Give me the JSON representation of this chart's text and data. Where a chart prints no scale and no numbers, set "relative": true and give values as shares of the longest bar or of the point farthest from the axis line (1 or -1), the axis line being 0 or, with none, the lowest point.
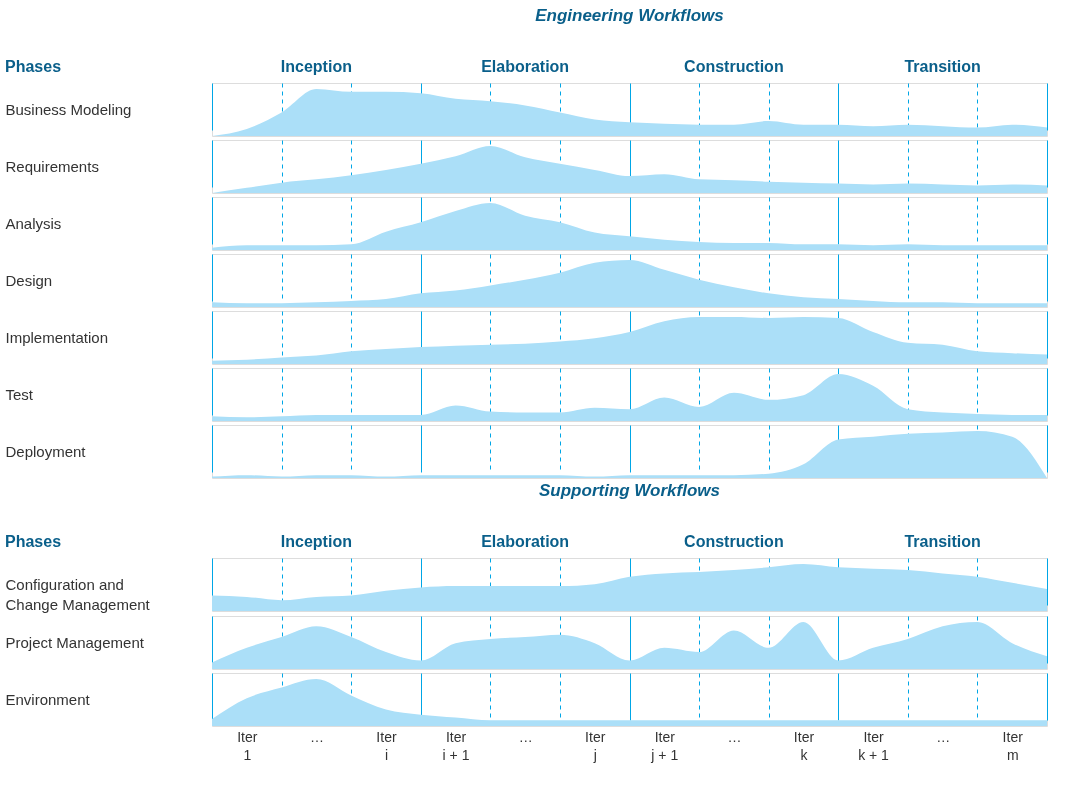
{
  "chart_data": [
    {
      "type": "area",
      "relative": true,
      "title": "Engineering Workflows",
      "annotations": [
        "Phases",
        "Inception",
        "Elaboration",
        "Construction",
        "Transition"
      ],
      "ylabel": "Business Modeling",
      "color": "#abdff8",
      "grid": "x",
      "tick_labels": false,
      "categories": [
        null,
        null,
        null,
        null,
        null,
        null,
        null,
        null,
        null,
        null,
        null,
        null,
        null,
        null,
        null,
        null,
        null,
        null,
        null,
        null,
        null,
        null,
        null,
        null,
        null
      ],
      "values": [
        0,
        0.15,
        0.5,
        1,
        0.94,
        0.94,
        0.91,
        0.79,
        0.74,
        0.65,
        0.5,
        0.35,
        0.29,
        0.26,
        0.24,
        0.24,
        0.32,
        0.24,
        0.24,
        0.21,
        0.24,
        0.21,
        0.18,
        0.24,
        0.18
      ]
    },
    {
      "type": "area",
      "relative": true,
      "ylabel": "Requirements",
      "color": "#abdff8",
      "grid": "x",
      "tick_labels": false,
      "categories": [
        null,
        null,
        null,
        null,
        null,
        null,
        null,
        null,
        null,
        null,
        null,
        null,
        null,
        null,
        null,
        null,
        null,
        null,
        null,
        null,
        null,
        null,
        null,
        null,
        null
      ],
      "values": [
        0,
        0.11,
        0.22,
        0.29,
        0.38,
        0.49,
        0.62,
        0.78,
        1,
        0.76,
        0.62,
        0.49,
        0.36,
        0.4,
        0.29,
        0.27,
        0.24,
        0.22,
        0.2,
        0.18,
        0.2,
        0.18,
        0.16,
        0.18,
        0.16
      ]
    },
    {
      "type": "area",
      "relative": true,
      "ylabel": "Analysis",
      "color": "#abdff8",
      "grid": "x",
      "tick_labels": false,
      "categories": [
        null,
        null,
        null,
        null,
        null,
        null,
        null,
        null,
        null,
        null,
        null,
        null,
        null,
        null,
        null,
        null,
        null,
        null,
        null,
        null,
        null,
        null,
        null,
        null,
        null
      ],
      "values": [
        0.05,
        0.1,
        0.1,
        0.1,
        0.12,
        0.39,
        0.59,
        0.83,
        1,
        0.73,
        0.59,
        0.37,
        0.29,
        0.22,
        0.17,
        0.15,
        0.15,
        0.12,
        0.12,
        0.1,
        0.12,
        0.1,
        0.1,
        0.1,
        0.1
      ]
    },
    {
      "type": "area",
      "relative": true,
      "ylabel": "Design",
      "color": "#abdff8",
      "grid": "x",
      "tick_labels": false,
      "categories": [
        null,
        null,
        null,
        null,
        null,
        null,
        null,
        null,
        null,
        null,
        null,
        null,
        null,
        null,
        null,
        null,
        null,
        null,
        null,
        null,
        null,
        null,
        null,
        null,
        null
      ],
      "values": [
        0.1,
        0.08,
        0.08,
        0.1,
        0.13,
        0.17,
        0.29,
        0.35,
        0.46,
        0.58,
        0.73,
        0.94,
        1,
        0.79,
        0.58,
        0.42,
        0.29,
        0.21,
        0.17,
        0.13,
        0.1,
        0.1,
        0.08,
        0.08,
        0.08
      ]
    },
    {
      "type": "area",
      "relative": true,
      "ylabel": "Implementation",
      "color": "#abdff8",
      "grid": "x",
      "tick_labels": false,
      "categories": [
        null,
        null,
        null,
        null,
        null,
        null,
        null,
        null,
        null,
        null,
        null,
        null,
        null,
        null,
        null,
        null,
        null,
        null,
        null,
        null,
        null,
        null,
        null,
        null,
        null
      ],
      "values": [
        0.07,
        0.09,
        0.14,
        0.18,
        0.27,
        0.32,
        0.36,
        0.39,
        0.41,
        0.43,
        0.48,
        0.55,
        0.68,
        0.91,
        1,
        1,
        0.98,
        1,
        0.98,
        0.68,
        0.45,
        0.41,
        0.27,
        0.23,
        0.2
      ]
    },
    {
      "type": "area",
      "relative": true,
      "ylabel": "Test",
      "color": "#abdff8",
      "grid": "x",
      "tick_labels": false,
      "categories": [
        null,
        null,
        null,
        null,
        null,
        null,
        null,
        null,
        null,
        null,
        null,
        null,
        null,
        null,
        null,
        null,
        null,
        null,
        null,
        null,
        null,
        null,
        null,
        null,
        null
      ],
      "values": [
        0.1,
        0.08,
        0.1,
        0.13,
        0.13,
        0.13,
        0.13,
        0.33,
        0.2,
        0.18,
        0.18,
        0.28,
        0.25,
        0.5,
        0.3,
        0.6,
        0.45,
        0.55,
        1,
        0.75,
        0.25,
        0.18,
        0.15,
        0.13,
        0.13
      ]
    },
    {
      "type": "area",
      "relative": true,
      "ylabel": "Deployment",
      "color": "#abdff8",
      "grid": "x",
      "tick_labels": false,
      "categories": [
        null,
        null,
        null,
        null,
        null,
        null,
        null,
        null,
        null,
        null,
        null,
        null,
        null,
        null,
        null,
        null,
        null,
        null,
        null,
        null,
        null,
        null,
        null,
        null,
        null
      ],
      "values": [
        0.03,
        0.06,
        0.03,
        0.06,
        0.06,
        0.03,
        0.06,
        0.06,
        0.06,
        0.06,
        0.06,
        0.03,
        0.06,
        0.06,
        0.06,
        0.06,
        0.09,
        0.29,
        0.82,
        0.88,
        0.94,
        0.97,
        1,
        0.88,
        0
      ]
    },
    {
      "type": "area",
      "relative": true,
      "title": "Supporting Workflows",
      "annotations": [
        "Phases",
        "Inception",
        "Elaboration",
        "Construction",
        "Transition"
      ],
      "ylabel": "Configuration and Change Management",
      "color": "#abdff8",
      "grid": "x",
      "tick_labels": false,
      "categories": [
        null,
        null,
        null,
        null,
        null,
        null,
        null,
        null,
        null,
        null,
        null,
        null,
        null,
        null,
        null,
        null,
        null,
        null,
        null,
        null,
        null,
        null,
        null,
        null,
        null
      ],
      "values": [
        0.33,
        0.3,
        0.23,
        0.3,
        0.33,
        0.43,
        0.5,
        0.53,
        0.53,
        0.53,
        0.53,
        0.57,
        0.73,
        0.8,
        0.83,
        0.87,
        0.93,
        1,
        0.93,
        0.9,
        0.87,
        0.8,
        0.73,
        0.6,
        0.47
      ]
    },
    {
      "type": "area",
      "relative": true,
      "ylabel": "Project Management",
      "color": "#abdff8",
      "grid": "x",
      "tick_labels": false,
      "categories": [
        null,
        null,
        null,
        null,
        null,
        null,
        null,
        null,
        null,
        null,
        null,
        null,
        null,
        null,
        null,
        null,
        null,
        null,
        null,
        null,
        null,
        null,
        null,
        null,
        null
      ],
      "values": [
        0.14,
        0.45,
        0.68,
        0.91,
        0.68,
        0.36,
        0.18,
        0.55,
        0.64,
        0.68,
        0.73,
        0.55,
        0.18,
        0.45,
        0.36,
        0.82,
        0.45,
        1,
        0.18,
        0.45,
        0.64,
        0.91,
        1,
        0.55,
        0.27
      ]
    },
    {
      "type": "area",
      "relative": true,
      "ylabel": "Environment",
      "color": "#abdff8",
      "grid": "x",
      "tick_labels": "x",
      "categories": [
        null,
        "Iter 1",
        null,
        "…",
        null,
        "Iter i",
        null,
        "Iter i + 1",
        null,
        "…",
        null,
        "Iter j",
        null,
        "Iter j + 1",
        null,
        "…",
        null,
        "Iter k",
        null,
        "Iter k + 1",
        null,
        "…",
        null,
        "Iter m",
        null
      ],
      "values": [
        0.15,
        0.59,
        0.82,
        1,
        0.65,
        0.35,
        0.24,
        0.18,
        0.12,
        0.12,
        0.12,
        0.12,
        0.12,
        0.12,
        0.12,
        0.12,
        0.12,
        0.12,
        0.12,
        0.12,
        0.12,
        0.12,
        0.12,
        0.12,
        0.12
      ]
    }
  ]
}
